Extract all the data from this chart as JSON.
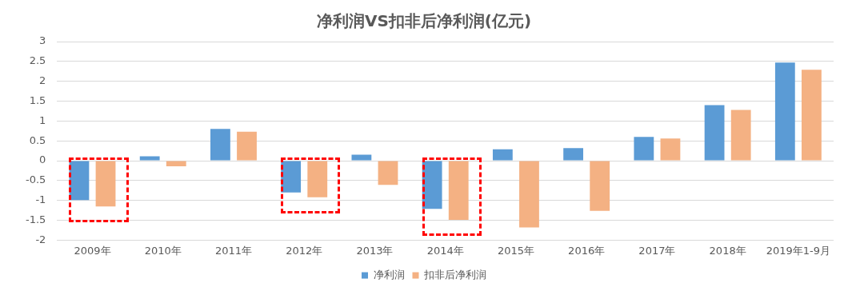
{
  "chart_data": {
    "type": "bar",
    "title": "净利润VS扣非后净利润(亿元)",
    "categories": [
      "2009年",
      "2010年",
      "2011年",
      "2012年",
      "2013年",
      "2014年",
      "2015年",
      "2016年",
      "2017年",
      "2018年",
      "2019年1-9月"
    ],
    "series": [
      {
        "name": "净利润",
        "color": "#5b9bd5",
        "values": [
          -0.99,
          0.11,
          0.8,
          -0.8,
          0.15,
          -1.21,
          0.29,
          0.32,
          0.6,
          1.4,
          2.47
        ]
      },
      {
        "name": "扣非后净利润",
        "color": "#f4b183",
        "values": [
          -1.15,
          -0.14,
          0.73,
          -0.92,
          -0.61,
          -1.49,
          -1.68,
          -1.26,
          0.56,
          1.28,
          2.29
        ]
      }
    ],
    "ylim": [
      -2,
      3
    ],
    "yticks": [
      -2,
      -1.5,
      -1,
      -0.5,
      0,
      0.5,
      1,
      1.5,
      2,
      2.5,
      3
    ],
    "grid": "y",
    "legend": "bottom"
  }
}
